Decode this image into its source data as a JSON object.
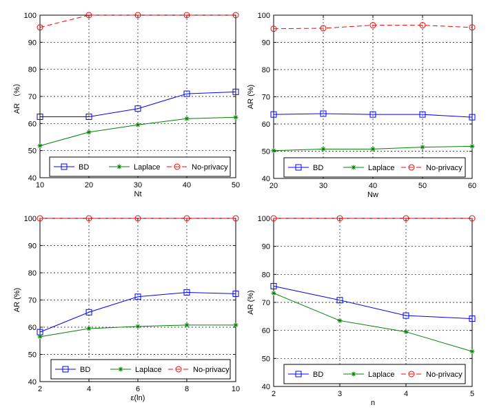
{
  "chart_data": [
    {
      "type": "line",
      "xlabel": "Nt",
      "ylabel": "AR （%）",
      "x": [
        10,
        20,
        30,
        40,
        50
      ],
      "xlim": [
        10,
        50
      ],
      "ylim": [
        40,
        100
      ],
      "xticks": [
        "10",
        "20",
        "30",
        "40",
        "50"
      ],
      "yticks": [
        "40",
        "50",
        "60",
        "70",
        "80",
        "90",
        "100"
      ],
      "grid": true,
      "legend_position": "bottom",
      "series": [
        {
          "name": "BD",
          "values": [
            62.5,
            62.5,
            65.5,
            71,
            71.7
          ],
          "color": "#0000ff",
          "marker": "square",
          "dash": "solid"
        },
        {
          "name": "Laplace",
          "values": [
            51.8,
            56.8,
            59.5,
            61.8,
            62.3
          ],
          "color": "#008000",
          "marker": "star",
          "dash": "solid"
        },
        {
          "name": "No-privacy",
          "values": [
            95.5,
            100,
            100,
            100,
            100
          ],
          "color": "#ff0000",
          "marker": "circle",
          "dash": "dashed"
        }
      ]
    },
    {
      "type": "line",
      "xlabel": "Nw",
      "ylabel": "AR (%)",
      "x": [
        20,
        30,
        40,
        50,
        60
      ],
      "xlim": [
        20,
        60
      ],
      "ylim": [
        40,
        100
      ],
      "xticks": [
        "20",
        "30",
        "40",
        "50",
        "60"
      ],
      "yticks": [
        "40",
        "50",
        "60",
        "70",
        "80",
        "90",
        "100"
      ],
      "grid": true,
      "legend_position": "bottom",
      "series": [
        {
          "name": "BD",
          "values": [
            63.5,
            63.8,
            63.5,
            63.5,
            62.5
          ],
          "color": "#0000ff",
          "marker": "square",
          "dash": "solid"
        },
        {
          "name": "Laplace",
          "values": [
            50.2,
            50.8,
            50.8,
            51.5,
            51.8
          ],
          "color": "#008000",
          "marker": "star",
          "dash": "solid"
        },
        {
          "name": "No-privacy",
          "values": [
            95,
            95.2,
            96.3,
            96.3,
            95.5
          ],
          "color": "#ff0000",
          "marker": "circle",
          "dash": "dashed"
        }
      ]
    },
    {
      "type": "line",
      "xlabel": "ε(ln)",
      "ylabel": "AR (%)",
      "x": [
        2,
        4,
        6,
        8,
        10
      ],
      "xlim": [
        2,
        10
      ],
      "ylim": [
        40,
        100
      ],
      "xticks": [
        "2",
        "4",
        "6",
        "8",
        "10"
      ],
      "yticks": [
        "40",
        "50",
        "60",
        "70",
        "80",
        "90",
        "100"
      ],
      "grid": true,
      "legend_position": "bottom",
      "series": [
        {
          "name": "BD",
          "values": [
            58.2,
            65.5,
            71.2,
            72.8,
            72.3
          ],
          "color": "#0000ff",
          "marker": "square",
          "dash": "solid"
        },
        {
          "name": "Laplace",
          "values": [
            56.5,
            59.5,
            60.3,
            60.8,
            60.8
          ],
          "color": "#008000",
          "marker": "star",
          "dash": "solid"
        },
        {
          "name": "No-privacy",
          "values": [
            100,
            100,
            100,
            100,
            100
          ],
          "color": "#ff0000",
          "marker": "circle",
          "dash": "dashed"
        }
      ]
    },
    {
      "type": "line",
      "xlabel": "n",
      "ylabel": "AR (%)",
      "x": [
        2,
        3,
        4,
        5
      ],
      "xlim": [
        2,
        5
      ],
      "ylim": [
        40,
        100
      ],
      "xticks": [
        "2",
        "3",
        "4",
        "5"
      ],
      "yticks": [
        "40",
        "50",
        "60",
        "70",
        "80",
        "90",
        "100"
      ],
      "grid": true,
      "legend_position": "bottom",
      "series": [
        {
          "name": "BD",
          "values": [
            75.8,
            70.8,
            65.3,
            64.2
          ],
          "color": "#0000ff",
          "marker": "square",
          "dash": "solid"
        },
        {
          "name": "Laplace",
          "values": [
            73.3,
            63.5,
            59.5,
            52.5
          ],
          "color": "#008000",
          "marker": "star",
          "dash": "solid"
        },
        {
          "name": "No-privacy",
          "values": [
            100,
            100,
            100,
            100
          ],
          "color": "#ff0000",
          "marker": "circle",
          "dash": "dashed"
        }
      ]
    }
  ]
}
